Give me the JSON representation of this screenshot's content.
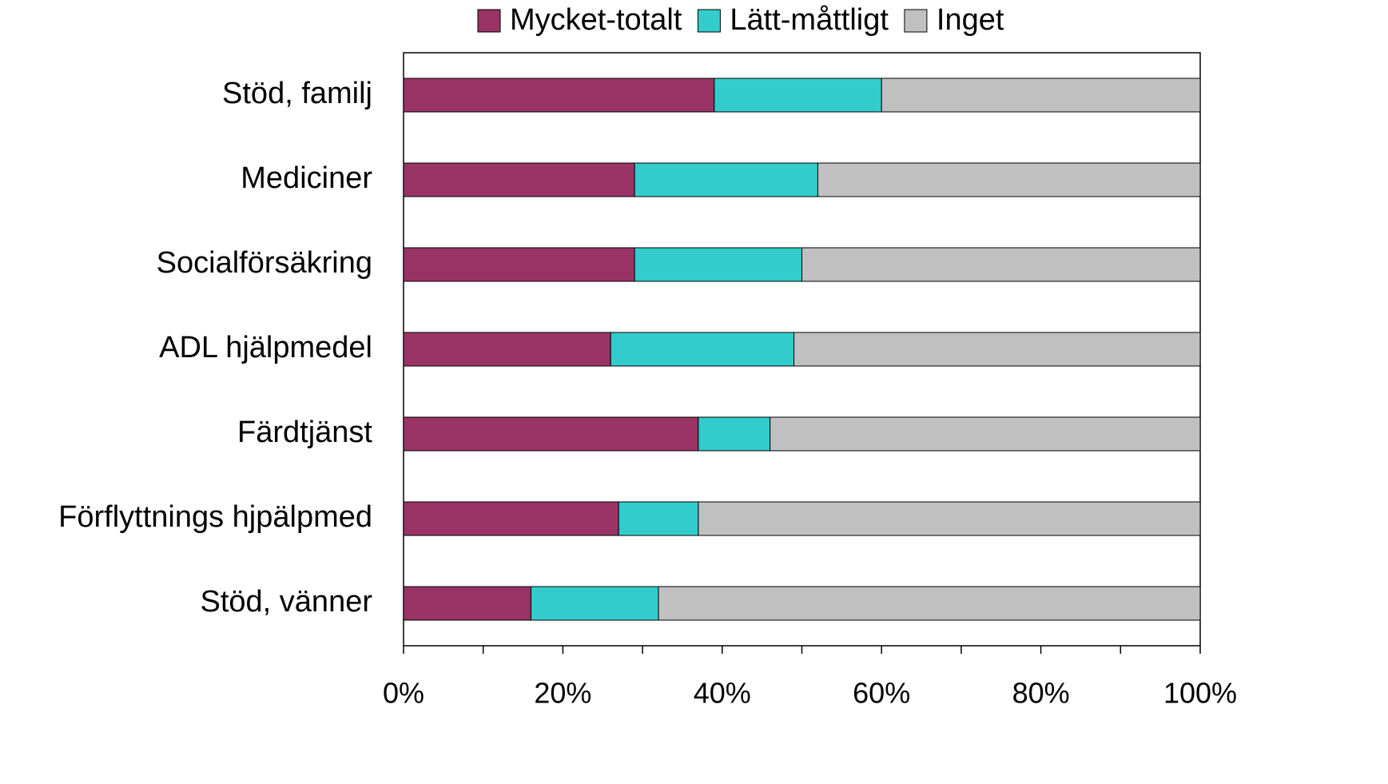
{
  "chart_data": {
    "type": "stacked_barh",
    "categories": [
      "Stöd, familj",
      "Mediciner",
      "Socialförsäkring",
      "ADL hjälpmedel",
      "Färdtjänst",
      "Förflyttnings hjpälpmed",
      "Stöd, vänner"
    ],
    "series": [
      {
        "name": "Mycket-totalt",
        "color": "#993366",
        "values": [
          39,
          29,
          29,
          26,
          37,
          27,
          16
        ]
      },
      {
        "name": "Lätt-måttligt",
        "color": "#33cccc",
        "values": [
          21,
          23,
          21,
          23,
          9,
          10,
          16
        ]
      },
      {
        "name": "Inget",
        "color": "#c0c0c0",
        "values": [
          40,
          48,
          50,
          51,
          54,
          63,
          68
        ]
      }
    ],
    "xlim": [
      0,
      100
    ],
    "xticks": [
      {
        "value": 0,
        "label": "0%"
      },
      {
        "value": 20,
        "label": "20%"
      },
      {
        "value": 40,
        "label": "40%"
      },
      {
        "value": 60,
        "label": "60%"
      },
      {
        "value": 80,
        "label": "80%"
      },
      {
        "value": 100,
        "label": "100%"
      }
    ],
    "minor_xticks": [
      10,
      30,
      50,
      70,
      90
    ],
    "legend": "top"
  }
}
